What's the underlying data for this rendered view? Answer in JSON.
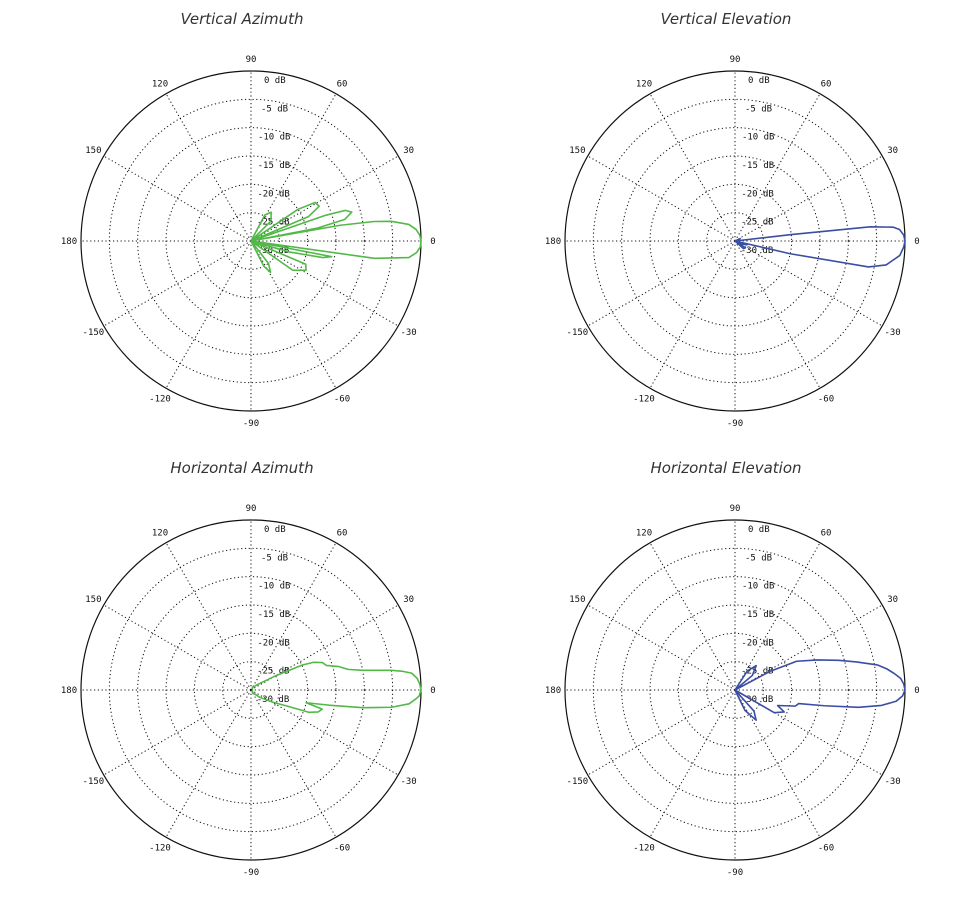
{
  "colors": {
    "green_trace": "#52b948",
    "blue_trace": "#3a4ea3",
    "grid": "#111111",
    "title": "#333333"
  },
  "chart_data": [
    {
      "type": "polar",
      "title": "Vertical Azimuth",
      "radial_unit": "dB",
      "rlim": [
        -30,
        0
      ],
      "radial_ticks": [
        "0 dB",
        "-5 dB",
        "-10 dB",
        "-15 dB",
        "-20 dB",
        "-25 dB",
        "-30 dB"
      ],
      "angle_ticks": [
        "90",
        "60",
        "30",
        "0",
        "-30",
        "-60",
        "-90",
        "-120",
        "-150",
        "180",
        "150",
        "120"
      ],
      "grid": true,
      "series": [
        {
          "color": "#52b948",
          "points": [
            [
              0,
              0
            ],
            [
              2,
              -0.2
            ],
            [
              4,
              -0.8
            ],
            [
              6,
              -2
            ],
            [
              8,
              -5
            ],
            [
              9,
              -8
            ],
            [
              10,
              -14
            ],
            [
              10.5,
              -30
            ],
            [
              11,
              -18
            ],
            [
              13,
              -13
            ],
            [
              16,
              -11.5
            ],
            [
              18,
              -12.5
            ],
            [
              19,
              -16
            ],
            [
              20,
              -30
            ],
            [
              23,
              -19
            ],
            [
              27,
              -16.5
            ],
            [
              31,
              -16.8
            ],
            [
              34,
              -20
            ],
            [
              36,
              -30
            ],
            [
              45,
              -25
            ],
            [
              55,
              -23.8
            ],
            [
              62,
              -24.8
            ],
            [
              66,
              -30
            ],
            [
              100,
              -30
            ],
            [
              260,
              -30
            ],
            [
              292,
              -30
            ],
            [
              297,
              -25
            ],
            [
              302,
              -23.5
            ],
            [
              308,
              -25
            ],
            [
              322,
              -30
            ],
            [
              325,
              -21
            ],
            [
              332,
              -19
            ],
            [
              337,
              -19.5
            ],
            [
              340,
              -30
            ],
            [
              344,
              -23
            ],
            [
              347,
              -17
            ],
            [
              349,
              -15.5
            ],
            [
              351,
              -30
            ],
            [
              352,
              -8
            ],
            [
              354,
              -2
            ],
            [
              356,
              -0.7
            ],
            [
              358,
              -0.1
            ],
            [
              360,
              0
            ]
          ]
        }
      ]
    },
    {
      "type": "polar",
      "title": "Vertical Elevation",
      "radial_unit": "dB",
      "rlim": [
        -30,
        0
      ],
      "radial_ticks": [
        "0 dB",
        "-5 dB",
        "-10 dB",
        "-15 dB",
        "-20 dB",
        "-25 dB",
        "-30 dB"
      ],
      "angle_ticks": [
        "90",
        "60",
        "30",
        "0",
        "-30",
        "-60",
        "-90",
        "-120",
        "-150",
        "180",
        "150",
        "120"
      ],
      "grid": true,
      "series": [
        {
          "color": "#3a4ea3",
          "points": [
            [
              0,
              0
            ],
            [
              2,
              -0.2
            ],
            [
              4,
              -0.9
            ],
            [
              5,
              -2
            ],
            [
              6,
              -6
            ],
            [
              6.5,
              -20
            ],
            [
              7,
              -30
            ],
            [
              15,
              -30
            ],
            [
              25,
              -29
            ],
            [
              45,
              -30
            ],
            [
              300,
              -30
            ],
            [
              318,
              -28
            ],
            [
              327,
              -27.8
            ],
            [
              332,
              -30
            ],
            [
              338,
              -28.5
            ],
            [
              342,
              -27.8
            ],
            [
              345,
              -30
            ],
            [
              347,
              -20
            ],
            [
              349,
              -6
            ],
            [
              351,
              -3
            ],
            [
              355,
              -0.8
            ],
            [
              358,
              -0.2
            ],
            [
              360,
              0
            ]
          ]
        }
      ]
    },
    {
      "type": "polar",
      "title": "Horizontal Azimuth",
      "radial_unit": "dB",
      "rlim": [
        -30,
        0
      ],
      "radial_ticks": [
        "0 dB",
        "-5 dB",
        "-10 dB",
        "-15 dB",
        "-20 dB",
        "-25 dB",
        "-30 dB"
      ],
      "angle_ticks": [
        "90",
        "60",
        "30",
        "0",
        "-30",
        "-60",
        "-90",
        "-120",
        "-150",
        "180",
        "150",
        "120"
      ],
      "grid": true,
      "series": [
        {
          "color": "#52b948",
          "points": [
            [
              0,
              0
            ],
            [
              2,
              -0.2
            ],
            [
              4,
              -0.6
            ],
            [
              6,
              -1.5
            ],
            [
              7,
              -3
            ],
            [
              8,
              -5
            ],
            [
              10,
              -10
            ],
            [
              12,
              -12.5
            ],
            [
              15,
              -14
            ],
            [
              18,
              -16
            ],
            [
              21,
              -16.5
            ],
            [
              24,
              -18
            ],
            [
              26,
              -20
            ],
            [
              30,
              -25
            ],
            [
              40,
              -28.5
            ],
            [
              60,
              -29.5
            ],
            [
              300,
              -29.5
            ],
            [
              320,
              -28
            ],
            [
              331,
              -25.5
            ],
            [
              336,
              -23
            ],
            [
              339,
              -19
            ],
            [
              342,
              -17.5
            ],
            [
              345,
              -17
            ],
            [
              347,
              -20
            ],
            [
              349,
              -16
            ],
            [
              351,
              -10
            ],
            [
              353,
              -5
            ],
            [
              355,
              -2
            ],
            [
              357,
              -0.8
            ],
            [
              358,
              -0.3
            ],
            [
              360,
              0
            ]
          ]
        }
      ]
    },
    {
      "type": "polar",
      "title": "Horizontal Elevation",
      "radial_unit": "dB",
      "rlim": [
        -30,
        0
      ],
      "radial_ticks": [
        "0 dB",
        "-5 dB",
        "-10 dB",
        "-15 dB",
        "-20 dB",
        "-25 dB",
        "-30 dB"
      ],
      "angle_ticks": [
        "90",
        "60",
        "30",
        "0",
        "-30",
        "-60",
        "-90",
        "-120",
        "-150",
        "180",
        "150",
        "120"
      ],
      "grid": true,
      "series": [
        {
          "color": "#3a4ea3",
          "points": [
            [
              0,
              0
            ],
            [
              2,
              -0.2
            ],
            [
              4,
              -0.7
            ],
            [
              6,
              -1.8
            ],
            [
              8,
              -3
            ],
            [
              10,
              -4.5
            ],
            [
              13,
              -8
            ],
            [
              16,
              -11
            ],
            [
              20,
              -14.5
            ],
            [
              25,
              -18
            ],
            [
              28,
              -23
            ],
            [
              31,
              -30
            ],
            [
              40,
              -26
            ],
            [
              49,
              -24.3
            ],
            [
              57,
              -26
            ],
            [
              70,
              -30
            ],
            [
              290,
              -30
            ],
            [
              296,
              -26
            ],
            [
              305,
              -23.5
            ],
            [
              312,
              -25
            ],
            [
              320,
              -30
            ],
            [
              330,
              -22
            ],
            [
              336,
              -20.5
            ],
            [
              340,
              -22
            ],
            [
              345,
              -19
            ],
            [
              348,
              -18.5
            ],
            [
              350,
              -14
            ],
            [
              352,
              -8
            ],
            [
              354,
              -4
            ],
            [
              356,
              -1.5
            ],
            [
              358,
              -0.4
            ],
            [
              360,
              0
            ]
          ]
        }
      ]
    }
  ]
}
